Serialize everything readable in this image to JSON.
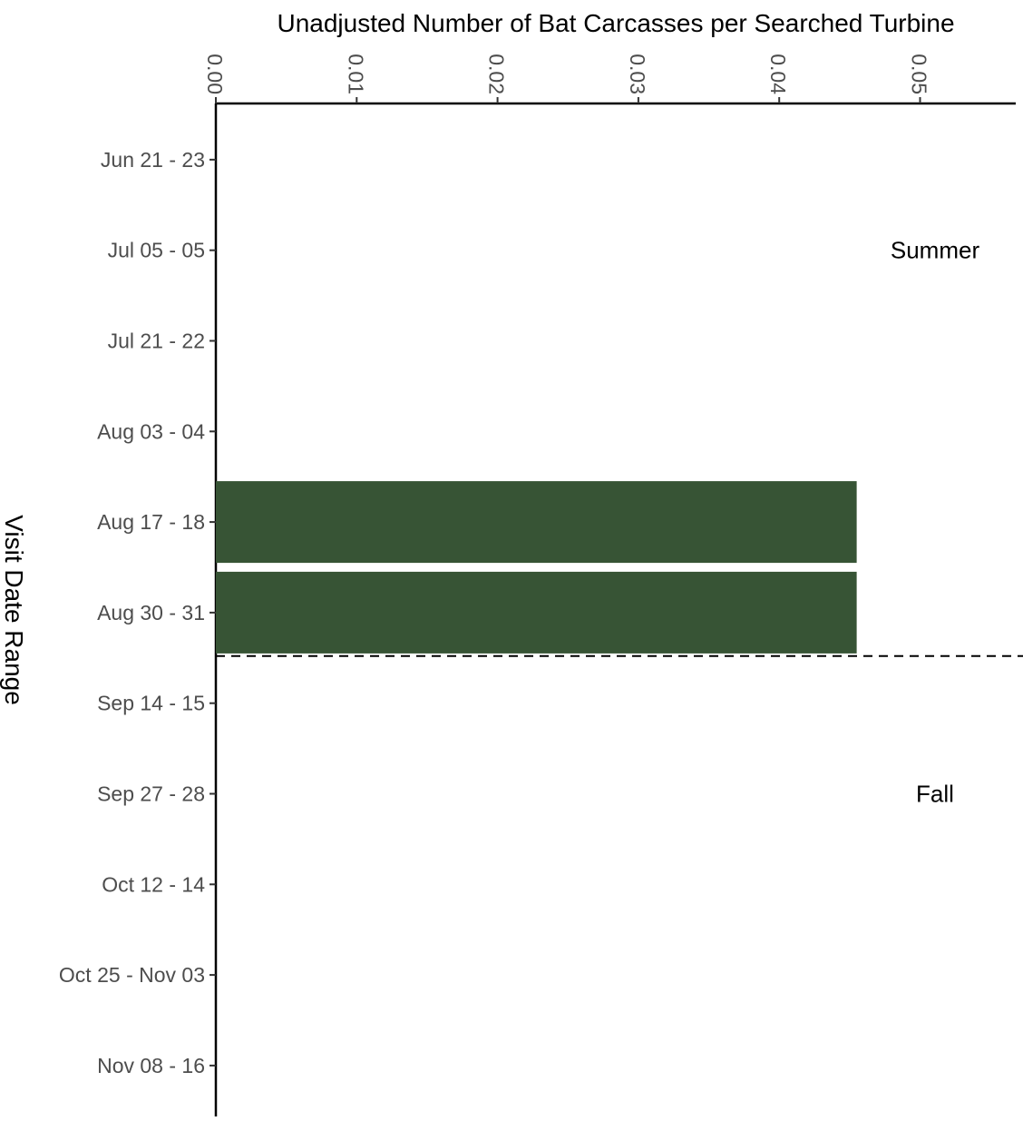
{
  "chart_data": {
    "type": "bar",
    "orientation": "horizontal",
    "title": "",
    "xlabel": "Unadjusted Number of Bat Carcasses per Searched Turbine",
    "ylabel": "Visit Date Range",
    "xlim": [
      0,
      0.057
    ],
    "xticks": [
      "0.00",
      "0.01",
      "0.02",
      "0.03",
      "0.04",
      "0.05"
    ],
    "x_axis_position": "top",
    "grid": false,
    "categories": [
      "Jun 21 - 23",
      "Jul 05 - 05",
      "Jul 21 - 22",
      "Aug 03 - 04",
      "Aug 17 - 18",
      "Aug 30 - 31",
      "Sep 14 - 15",
      "Sep 27 - 28",
      "Oct 12 - 14",
      "Oct 25 - Nov 03",
      "Nov 08 - 16"
    ],
    "values": [
      0,
      0,
      0,
      0,
      0.0455,
      0.0455,
      0,
      0,
      0,
      0,
      0
    ],
    "bar_color": "#375435",
    "season_divider": {
      "between": [
        "Aug 30 - 31",
        "Sep 14 - 15"
      ],
      "style": "dashed"
    },
    "annotations": [
      {
        "text": "Summer",
        "at_category": "Jul 05 - 05"
      },
      {
        "text": "Fall",
        "at_category": "Sep 27 - 28"
      }
    ]
  }
}
